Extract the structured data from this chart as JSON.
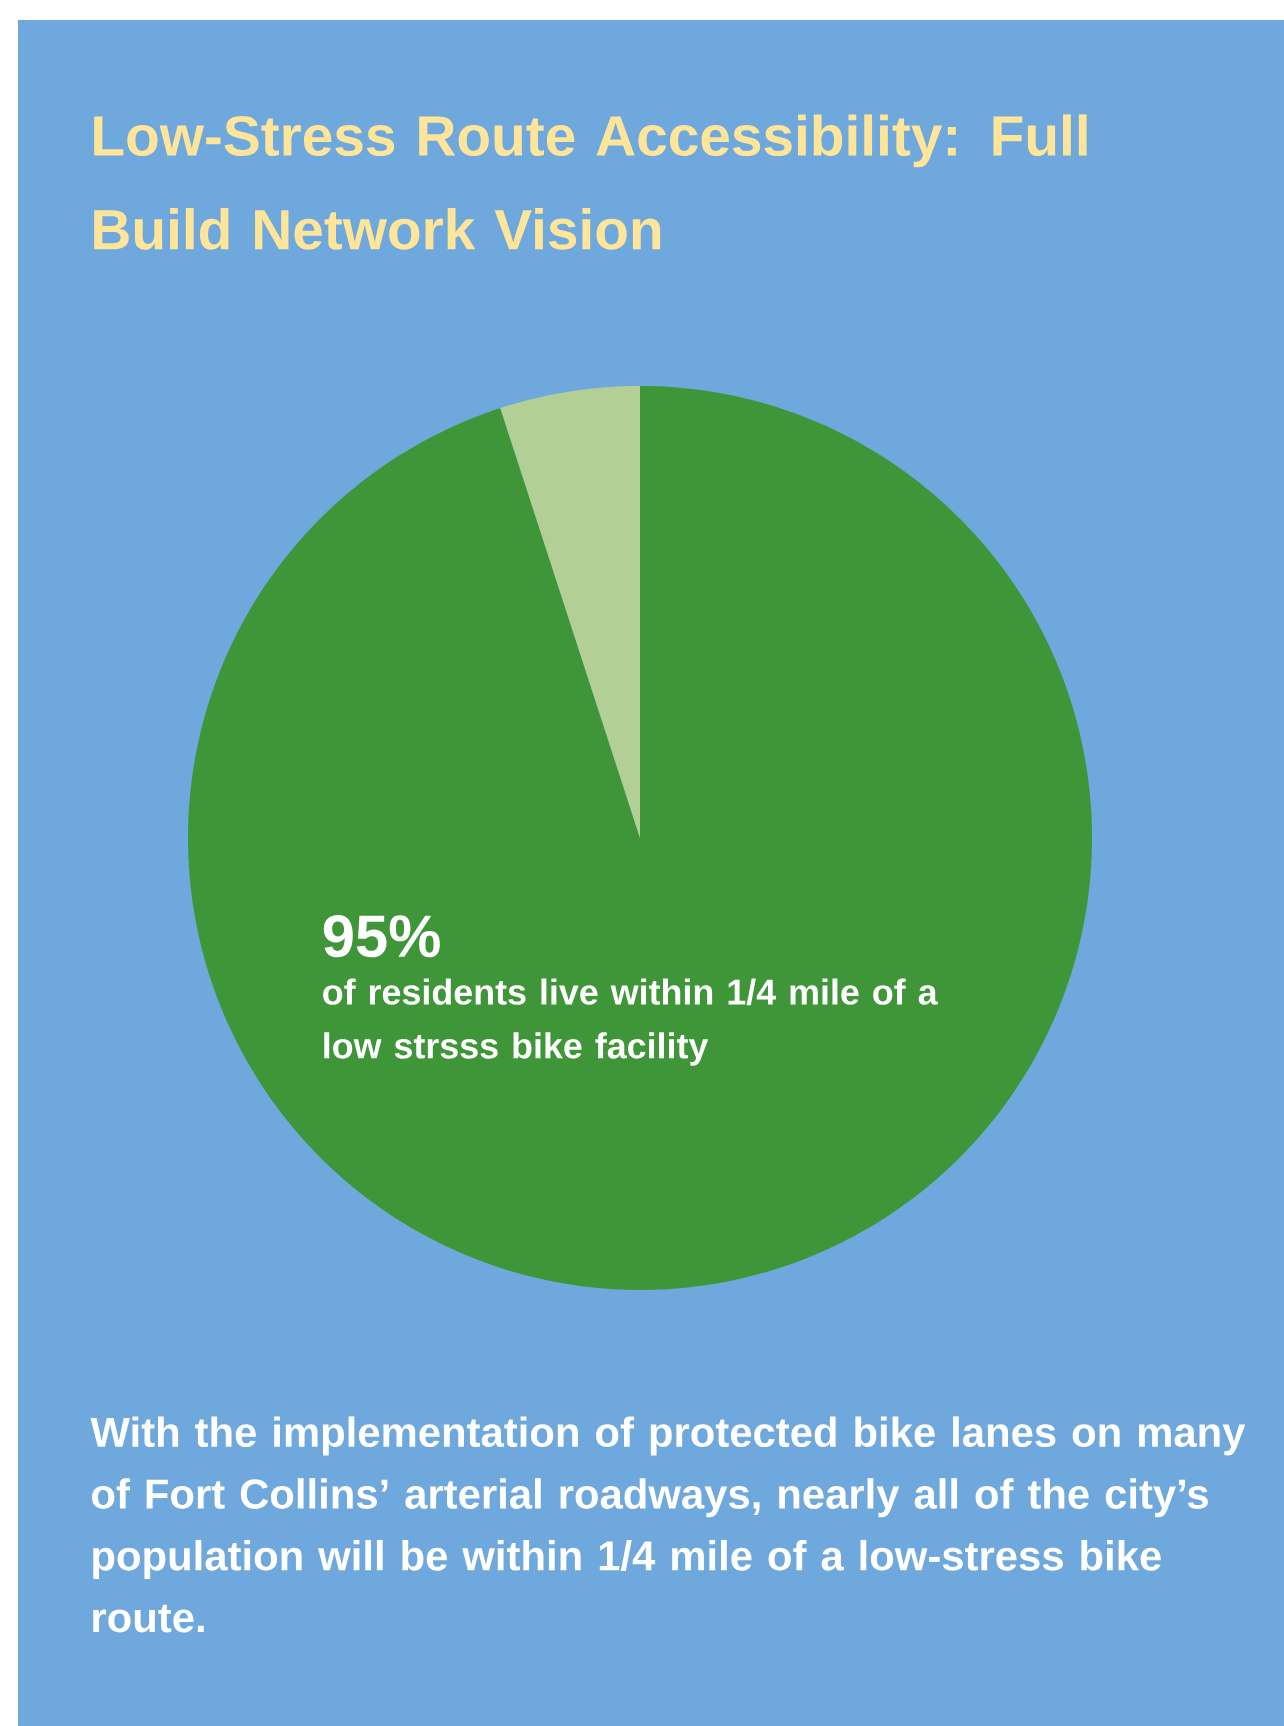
{
  "chart_data": {
    "type": "pie",
    "title": "Low-Stress Route Accessibility: Full Build Network Vision",
    "categories": [
      null,
      null
    ],
    "values": [
      95,
      5
    ],
    "colors": [
      "#3f9639",
      "#b3cf96"
    ],
    "value_labels": [
      "95%",
      null
    ],
    "annotations": [
      "of residents live within 1/4 mile of a low strsss bike facility",
      "With the implementation of protected bike lanes on many of Fort Collins’ arterial roadways, nearly all of the city’s population will be within 1/4 mile of a low-stress bike route."
    ]
  }
}
